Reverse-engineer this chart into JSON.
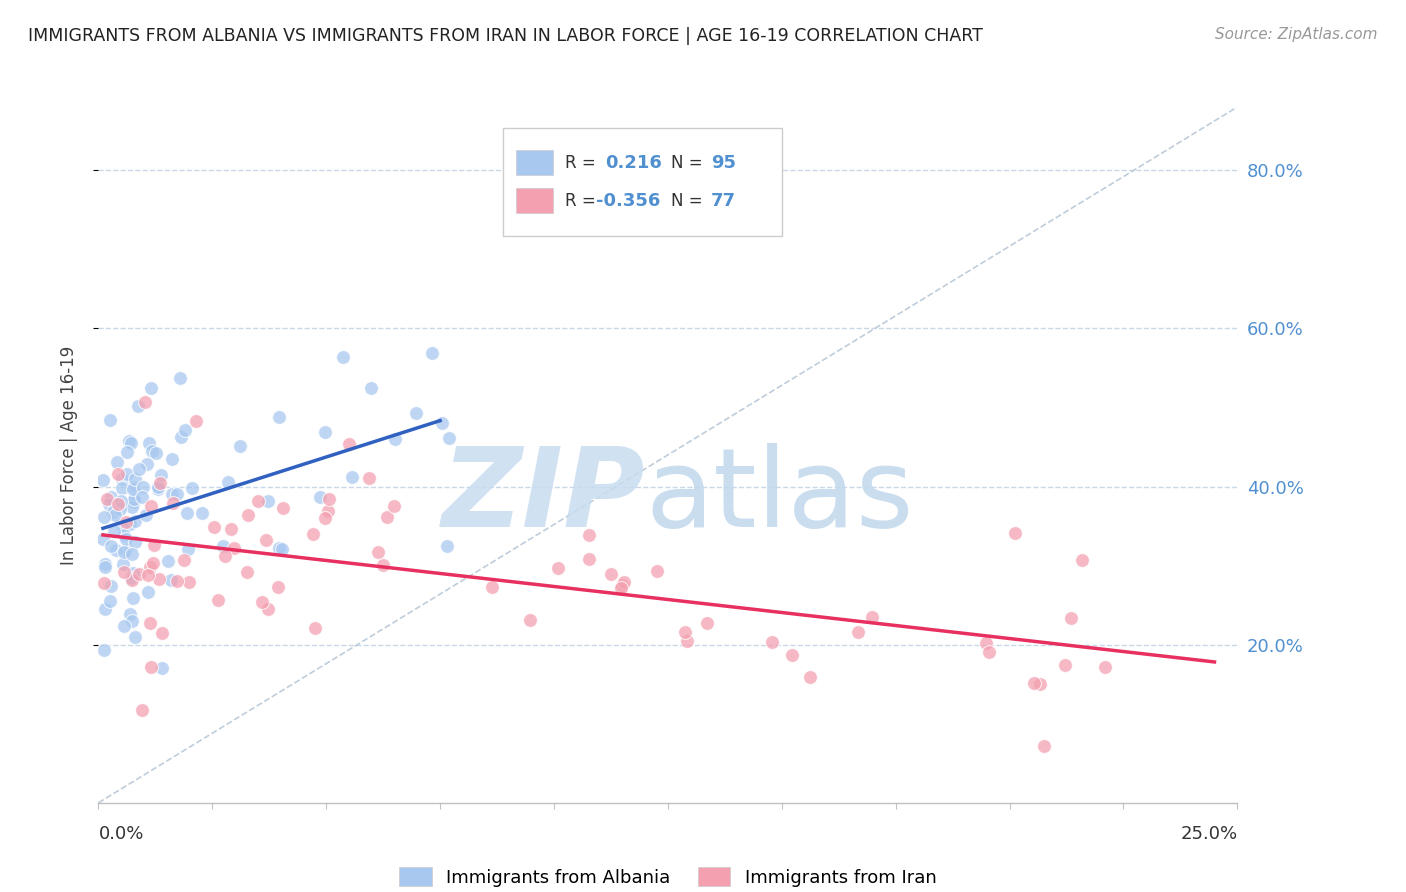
{
  "title": "IMMIGRANTS FROM ALBANIA VS IMMIGRANTS FROM IRAN IN LABOR FORCE | AGE 16-19 CORRELATION CHART",
  "source": "Source: ZipAtlas.com",
  "xlim": [
    0.0,
    0.25
  ],
  "ylim": [
    0.0,
    0.88
  ],
  "albania_color": "#A8C8F0",
  "iran_color": "#F4A0B0",
  "albania_line_color": "#3060C0",
  "iran_line_color": "#E83060",
  "diagonal_color": "#B8C8D8",
  "grid_color": "#C8D8E8",
  "bg_color": "#FFFFFF",
  "albania_R": 0.216,
  "albania_N": 95,
  "iran_R": -0.356,
  "iran_N": 77,
  "ytick_color": "#5090D0",
  "watermark_zip_color": "#C8DCF0",
  "watermark_atlas_color": "#C0D8EC"
}
